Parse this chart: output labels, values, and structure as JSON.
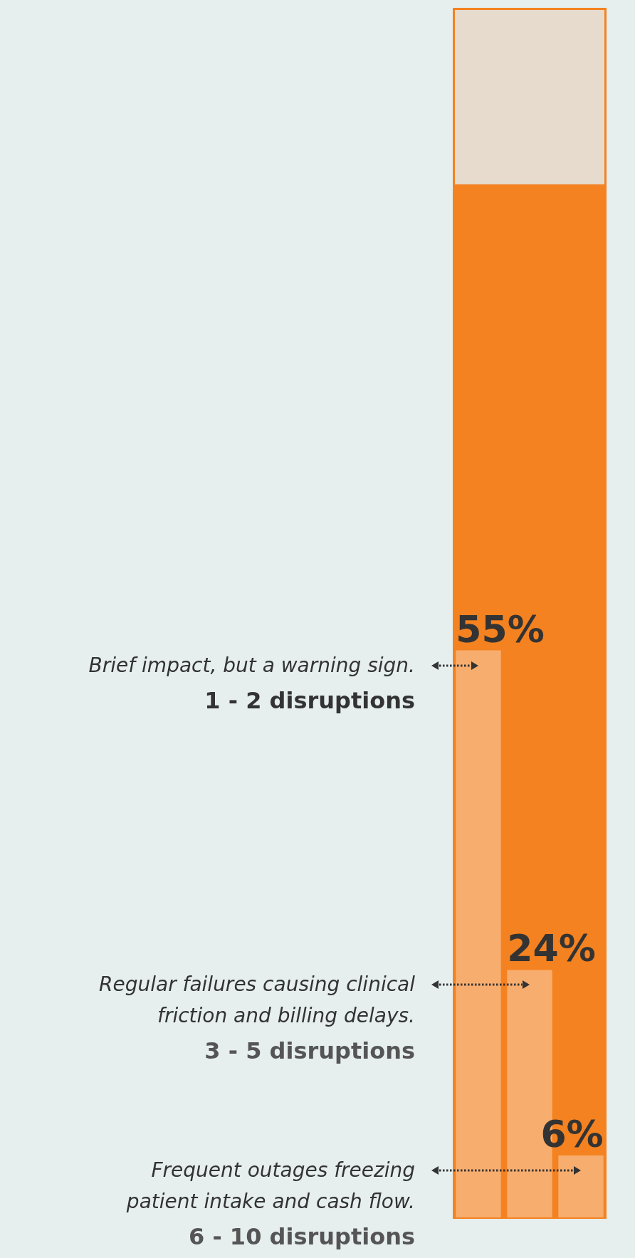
{
  "chart_data": {
    "type": "bar",
    "categories": [
      null,
      null,
      null
    ],
    "values": [
      55,
      24,
      6
    ],
    "color": "#f7ad6e",
    "value_labels": [
      "55%",
      "24%",
      "6%"
    ],
    "ylim": [
      0,
      100
    ],
    "annotations": [
      "Brief impact, but a warning sign.",
      "1 - 2 disruptions",
      "Regular failures causing clinical\nfriction and billing delays.",
      "3 - 5 disruptions",
      "Frequent outages freezing\npatient intake and cash flow.",
      "6 - 10 disruptions"
    ]
  }
}
